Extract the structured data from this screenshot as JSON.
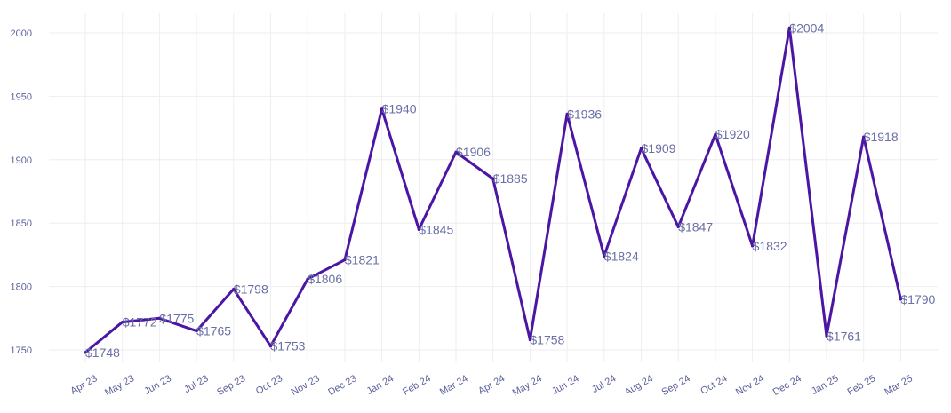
{
  "chart_data": {
    "type": "line",
    "title": "",
    "xlabel": "",
    "ylabel": "",
    "ylim": [
      1735,
      2018
    ],
    "yticks": [
      1750,
      1800,
      1850,
      1900,
      1950,
      2000
    ],
    "grid": true,
    "line_color": "#4b16a3",
    "label_color": "#6a6fa6",
    "tick_color": "#5a5f9a",
    "categories": [
      "Apr 23",
      "May 23",
      "Jun 23",
      "Jul 23",
      "Sep 23",
      "Oct 23",
      "Nov 23",
      "Dec 23",
      "Jan 24",
      "Feb 24",
      "Mar 24",
      "Apr 24",
      "May 24",
      "Jun 24",
      "Jul 24",
      "Aug 24",
      "Sep 24",
      "Oct 24",
      "Nov 24",
      "Dec 24",
      "Jan 25",
      "Feb 25",
      "Mar 25"
    ],
    "values": [
      1748,
      1772,
      1775,
      1765,
      1798,
      1753,
      1806,
      1821,
      1940,
      1845,
      1906,
      1885,
      1758,
      1936,
      1824,
      1909,
      1847,
      1920,
      1832,
      2004,
      1761,
      1918,
      1790
    ],
    "data_labels": [
      "$1748",
      "$1772",
      "$1775",
      "$1765",
      "$1798",
      "$1753",
      "$1806",
      "$1821",
      "$1940",
      "$1845",
      "$1906",
      "$1885",
      "$1758",
      "$1936",
      "$1824",
      "$1909",
      "$1847",
      "$1920",
      "$1832",
      "$2004",
      "$1761",
      "$1918",
      "$1790"
    ]
  }
}
